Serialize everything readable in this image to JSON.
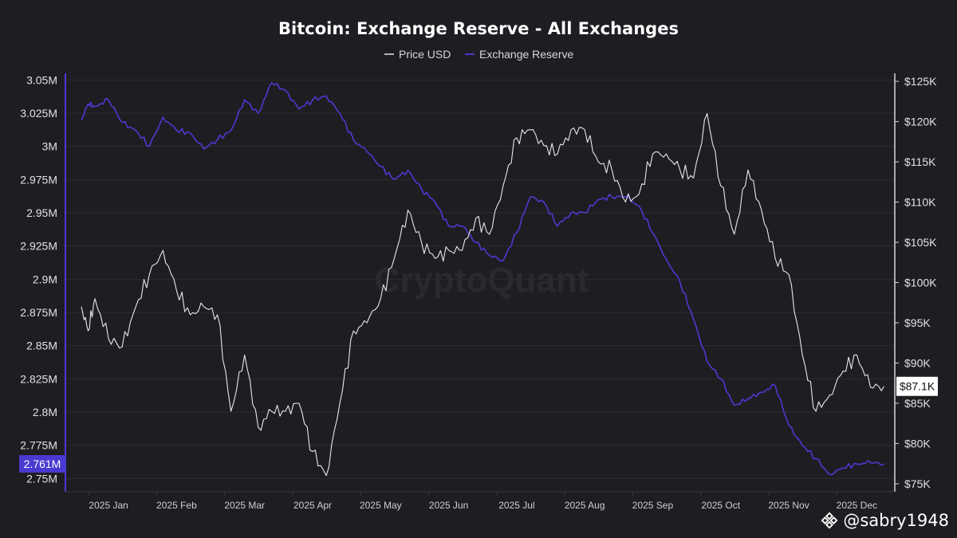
{
  "chart_data": {
    "type": "line",
    "title": "Bitcoin: Exchange Reserve - All Exchanges",
    "watermark": "CryptoQuant",
    "legend": [
      "Price USD",
      "Exchange Reserve"
    ],
    "legend_position": "top-center",
    "x_labels": [
      "2025 Jan",
      "2025 Feb",
      "2025 Mar",
      "2025 Apr",
      "2025 May",
      "2025 Jun",
      "2025 Jul",
      "2025 Aug",
      "2025 Sep",
      "2025 Oct",
      "2025 Nov",
      "2025 Dec"
    ],
    "y_left": {
      "label": "Exchange Reserve",
      "range": [
        2.74,
        3.055
      ],
      "ticks": [
        "2.75M",
        "2.775M",
        "2.8M",
        "2.825M",
        "2.85M",
        "2.875M",
        "2.9M",
        "2.925M",
        "2.95M",
        "2.975M",
        "3M",
        "3.025M",
        "3.05M"
      ],
      "tick_values": [
        2.75,
        2.775,
        2.8,
        2.825,
        2.85,
        2.875,
        2.9,
        2.925,
        2.95,
        2.975,
        3.0,
        3.025,
        3.05
      ]
    },
    "y_right": {
      "label": "Price USD",
      "range": [
        74,
        126
      ],
      "ticks": [
        "$75K",
        "$80K",
        "$85K",
        "$90K",
        "$95K",
        "$100K",
        "$105K",
        "$110K",
        "$115K",
        "$120K",
        "$125K"
      ],
      "tick_values": [
        75,
        80,
        85,
        90,
        95,
        100,
        105,
        110,
        115,
        120,
        125
      ]
    },
    "current_reserve_label": "2.761M",
    "current_reserve_value": 2.761,
    "current_price_label": "$87.1K",
    "current_price_value": 87.1,
    "series": [
      {
        "name": "Exchange Reserve",
        "color": "#4b3ad1",
        "unit": "M BTC",
        "t": [
          0,
          0.1,
          0.2,
          0.4,
          0.6,
          0.8,
          1.0,
          1.2,
          1.4,
          1.6,
          1.8,
          2.0,
          2.2,
          2.4,
          2.6,
          2.8,
          3.0,
          3.2,
          3.4,
          3.6,
          3.8,
          4.0,
          4.2,
          4.4,
          4.6,
          4.8,
          5.0,
          5.2,
          5.4,
          5.6,
          5.8,
          6.0,
          6.2,
          6.4,
          6.6,
          6.8,
          7.0,
          7.2,
          7.4,
          7.6,
          7.8,
          8.0,
          8.2,
          8.4,
          8.6,
          8.8,
          9.0,
          9.2,
          9.4,
          9.6,
          9.8,
          10.0,
          10.2,
          10.4,
          10.6,
          10.8,
          11.0,
          11.2,
          11.4,
          11.6,
          11.8
        ],
        "values": [
          3.02,
          3.032,
          3.03,
          3.035,
          3.018,
          3.012,
          3.0,
          3.022,
          3.012,
          3.01,
          2.998,
          3.005,
          3.012,
          3.035,
          3.025,
          3.048,
          3.042,
          3.028,
          3.035,
          3.038,
          3.025,
          3.005,
          2.996,
          2.985,
          2.975,
          2.982,
          2.968,
          2.958,
          2.94,
          2.94,
          2.928,
          2.918,
          2.914,
          2.935,
          2.962,
          2.958,
          2.94,
          2.95,
          2.95,
          2.96,
          2.962,
          2.962,
          2.955,
          2.935,
          2.915,
          2.898,
          2.87,
          2.838,
          2.825,
          2.805,
          2.81,
          2.815,
          2.82,
          2.79,
          2.775,
          2.765,
          2.753,
          2.758,
          2.761,
          2.762,
          2.761
        ]
      },
      {
        "name": "Price USD",
        "color": "#e8e8e8",
        "unit": "K USD",
        "t": [
          0,
          0.1,
          0.2,
          0.4,
          0.6,
          0.8,
          1.0,
          1.2,
          1.4,
          1.6,
          1.8,
          2.0,
          2.2,
          2.4,
          2.6,
          2.8,
          3.0,
          3.2,
          3.4,
          3.6,
          3.8,
          4.0,
          4.2,
          4.4,
          4.6,
          4.8,
          5.0,
          5.2,
          5.4,
          5.6,
          5.8,
          6.0,
          6.2,
          6.4,
          6.6,
          6.8,
          7.0,
          7.2,
          7.4,
          7.6,
          7.8,
          8.0,
          8.2,
          8.4,
          8.6,
          8.8,
          9.0,
          9.2,
          9.4,
          9.6,
          9.8,
          10.0,
          10.2,
          10.4,
          10.6,
          10.8,
          11.0,
          11.2,
          11.4,
          11.6,
          11.8
        ],
        "values": [
          97,
          94,
          98,
          93,
          92,
          97,
          101,
          104,
          99,
          96,
          97,
          96,
          84,
          91,
          82,
          84,
          84,
          85,
          79,
          76,
          85,
          94,
          95,
          98,
          103,
          109,
          105,
          103,
          104,
          104,
          108,
          106,
          112,
          118,
          119,
          117,
          116,
          119,
          119,
          115,
          114,
          110,
          111,
          116,
          116,
          114,
          113,
          121,
          112,
          106,
          114,
          109,
          103,
          101,
          91,
          84,
          86,
          89,
          91,
          87,
          87.1
        ]
      }
    ]
  },
  "footer": {
    "handle": "@sabry1948"
  }
}
